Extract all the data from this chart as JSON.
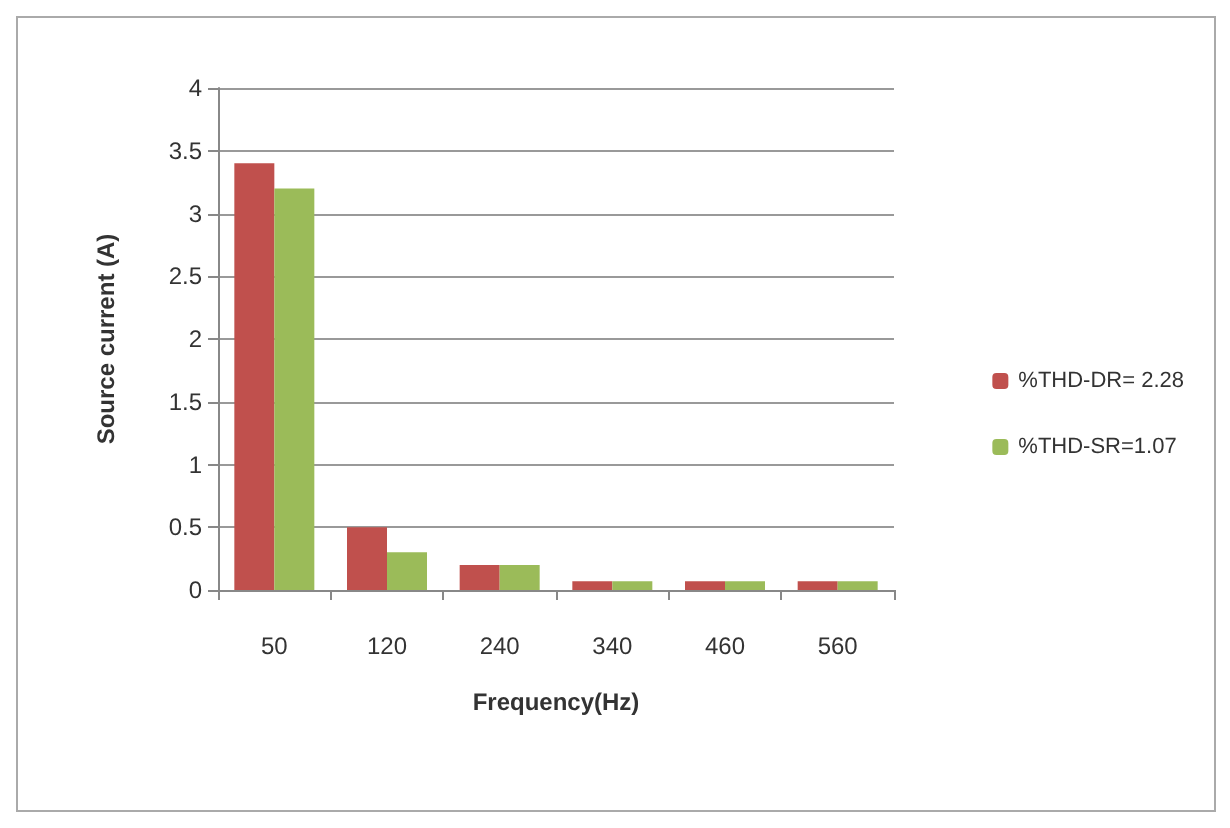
{
  "chart_data": {
    "type": "bar",
    "xlabel": "Frequency(Hz)",
    "ylabel": "Source current (A)",
    "categories": [
      "50",
      "120",
      "240",
      "340",
      "460",
      "560"
    ],
    "series": [
      {
        "name": "%THD-DR= 2.28",
        "color": "#c0504d",
        "values": [
          3.4,
          0.5,
          0.2,
          0.07,
          0.07,
          0.07
        ]
      },
      {
        "name": "%THD-SR=1.07",
        "color": "#9bbb59",
        "values": [
          3.2,
          0.3,
          0.2,
          0.07,
          0.07,
          0.07
        ]
      }
    ],
    "ylim": [
      0,
      4
    ],
    "yticks": [
      0,
      0.5,
      1,
      1.5,
      2,
      2.5,
      3,
      3.5,
      4
    ],
    "grid": "y",
    "legend": "right"
  }
}
